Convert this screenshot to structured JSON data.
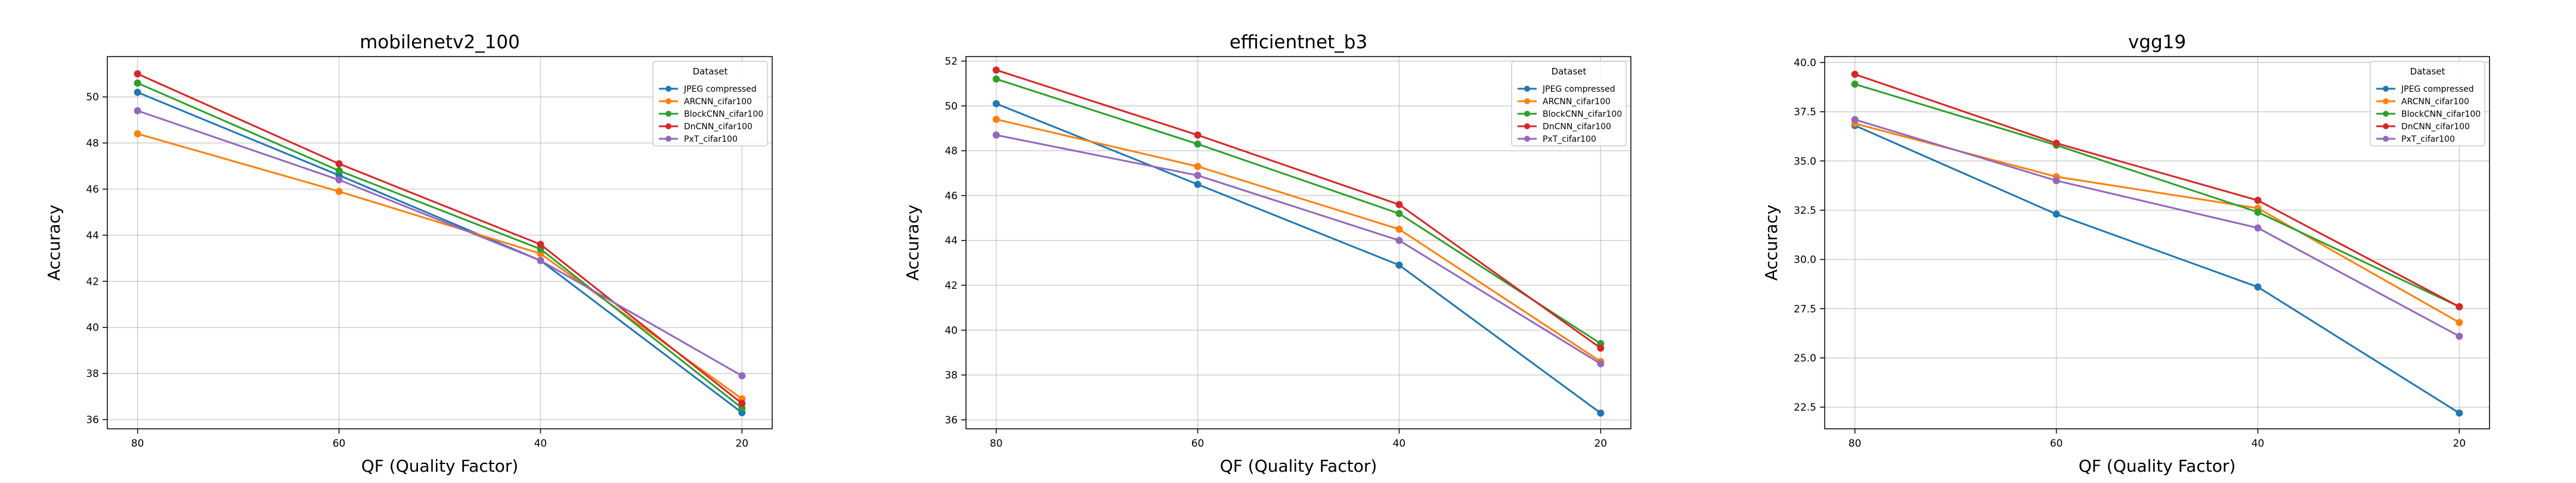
{
  "chart_data": [
    {
      "type": "line",
      "title": "mobilenetv2_100",
      "xlabel": "QF (Quality Factor)",
      "ylabel": "Accuracy",
      "x": [
        80,
        60,
        40,
        20
      ],
      "x_ticks": [
        "80",
        "60",
        "40",
        "20"
      ],
      "x_reversed": true,
      "ylim": [
        35.6,
        51.75
      ],
      "y_ticks": [
        36,
        38,
        40,
        42,
        44,
        46,
        48,
        50
      ],
      "y_tick_labels": [
        "36",
        "38",
        "40",
        "42",
        "44",
        "46",
        "48",
        "50"
      ],
      "grid": true,
      "legend": {
        "title": "Dataset",
        "placement": "top-right"
      },
      "series": [
        {
          "name": "JPEG compressed",
          "color": "#1f77b4",
          "values": [
            50.2,
            46.6,
            42.9,
            36.3
          ]
        },
        {
          "name": "ARCNN_cifar100",
          "color": "#ff7f0e",
          "values": [
            48.4,
            45.9,
            43.2,
            36.9
          ]
        },
        {
          "name": "BlockCNN_cifar100",
          "color": "#2ca02c",
          "values": [
            50.6,
            46.8,
            43.4,
            36.5
          ]
        },
        {
          "name": "DnCNN_cifar100",
          "color": "#d62728",
          "values": [
            51.0,
            47.1,
            43.6,
            36.7
          ]
        },
        {
          "name": "PxT_cifar100",
          "color": "#9467bd",
          "values": [
            49.4,
            46.4,
            42.9,
            37.9
          ]
        }
      ]
    },
    {
      "type": "line",
      "title": "efficientnet_b3",
      "xlabel": "QF (Quality Factor)",
      "ylabel": "Accuracy",
      "x": [
        80,
        60,
        40,
        20
      ],
      "x_ticks": [
        "80",
        "60",
        "40",
        "20"
      ],
      "x_reversed": true,
      "ylim": [
        35.6,
        52.2
      ],
      "y_ticks": [
        36,
        38,
        40,
        42,
        44,
        46,
        48,
        50,
        52
      ],
      "y_tick_labels": [
        "36",
        "38",
        "40",
        "42",
        "44",
        "46",
        "48",
        "50",
        "52"
      ],
      "grid": true,
      "legend": {
        "title": "Dataset",
        "placement": "top-right"
      },
      "series": [
        {
          "name": "JPEG compressed",
          "color": "#1f77b4",
          "values": [
            50.1,
            46.5,
            42.9,
            36.3
          ]
        },
        {
          "name": "ARCNN_cifar100",
          "color": "#ff7f0e",
          "values": [
            49.4,
            47.3,
            44.5,
            38.6
          ]
        },
        {
          "name": "BlockCNN_cifar100",
          "color": "#2ca02c",
          "values": [
            51.2,
            48.3,
            45.2,
            39.4
          ]
        },
        {
          "name": "DnCNN_cifar100",
          "color": "#d62728",
          "values": [
            51.6,
            48.7,
            45.6,
            39.2
          ]
        },
        {
          "name": "PxT_cifar100",
          "color": "#9467bd",
          "values": [
            48.7,
            46.9,
            44.0,
            38.5
          ]
        }
      ]
    },
    {
      "type": "line",
      "title": "vgg19",
      "xlabel": "QF (Quality Factor)",
      "ylabel": "Accuracy",
      "x": [
        80,
        60,
        40,
        20
      ],
      "x_ticks": [
        "80",
        "60",
        "40",
        "20"
      ],
      "x_reversed": true,
      "ylim": [
        21.4,
        40.3
      ],
      "y_ticks": [
        22.5,
        25.0,
        27.5,
        30.0,
        32.5,
        35.0,
        37.5,
        40.0
      ],
      "y_tick_labels": [
        "22.5",
        "25.0",
        "27.5",
        "30.0",
        "32.5",
        "35.0",
        "37.5",
        "40.0"
      ],
      "grid": true,
      "legend": {
        "title": "Dataset",
        "placement": "top-right"
      },
      "series": [
        {
          "name": "JPEG compressed",
          "color": "#1f77b4",
          "values": [
            36.8,
            32.3,
            28.6,
            22.2
          ]
        },
        {
          "name": "ARCNN_cifar100",
          "color": "#ff7f0e",
          "values": [
            36.9,
            34.2,
            32.6,
            26.8
          ]
        },
        {
          "name": "BlockCNN_cifar100",
          "color": "#2ca02c",
          "values": [
            38.9,
            35.8,
            32.4,
            27.6
          ]
        },
        {
          "name": "DnCNN_cifar100",
          "color": "#d62728",
          "values": [
            39.4,
            35.9,
            33.0,
            27.6
          ]
        },
        {
          "name": "PxT_cifar100",
          "color": "#9467bd",
          "values": [
            37.1,
            34.0,
            31.6,
            26.1
          ]
        }
      ]
    }
  ]
}
